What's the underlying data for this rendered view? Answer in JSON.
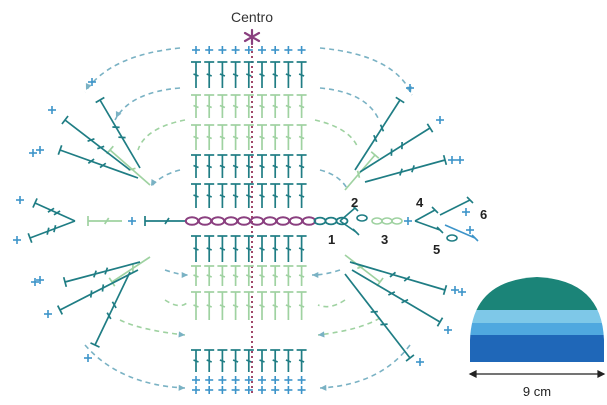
{
  "center_label": "Centro",
  "step_numbers": [
    "1",
    "2",
    "3",
    "4",
    "5",
    "6"
  ],
  "swatch_width_label": "9 cm",
  "colors": {
    "dark_teal": "#1f7d84",
    "mid_blue": "#3d94c9",
    "light_green": "#9fd2a1",
    "chain_purple": "#8a3f7f",
    "arrow": "#7ab2c4",
    "swatch_top": "#1b8478",
    "swatch_mid": "#7ec8e8",
    "swatch_band2": "#4fa8df",
    "swatch_bottom": "#1f67b8"
  },
  "swatch_stripes": [
    "swatch_top",
    "swatch_mid",
    "swatch_band2",
    "swatch_bottom"
  ],
  "center_marker": "asterisk-icon"
}
